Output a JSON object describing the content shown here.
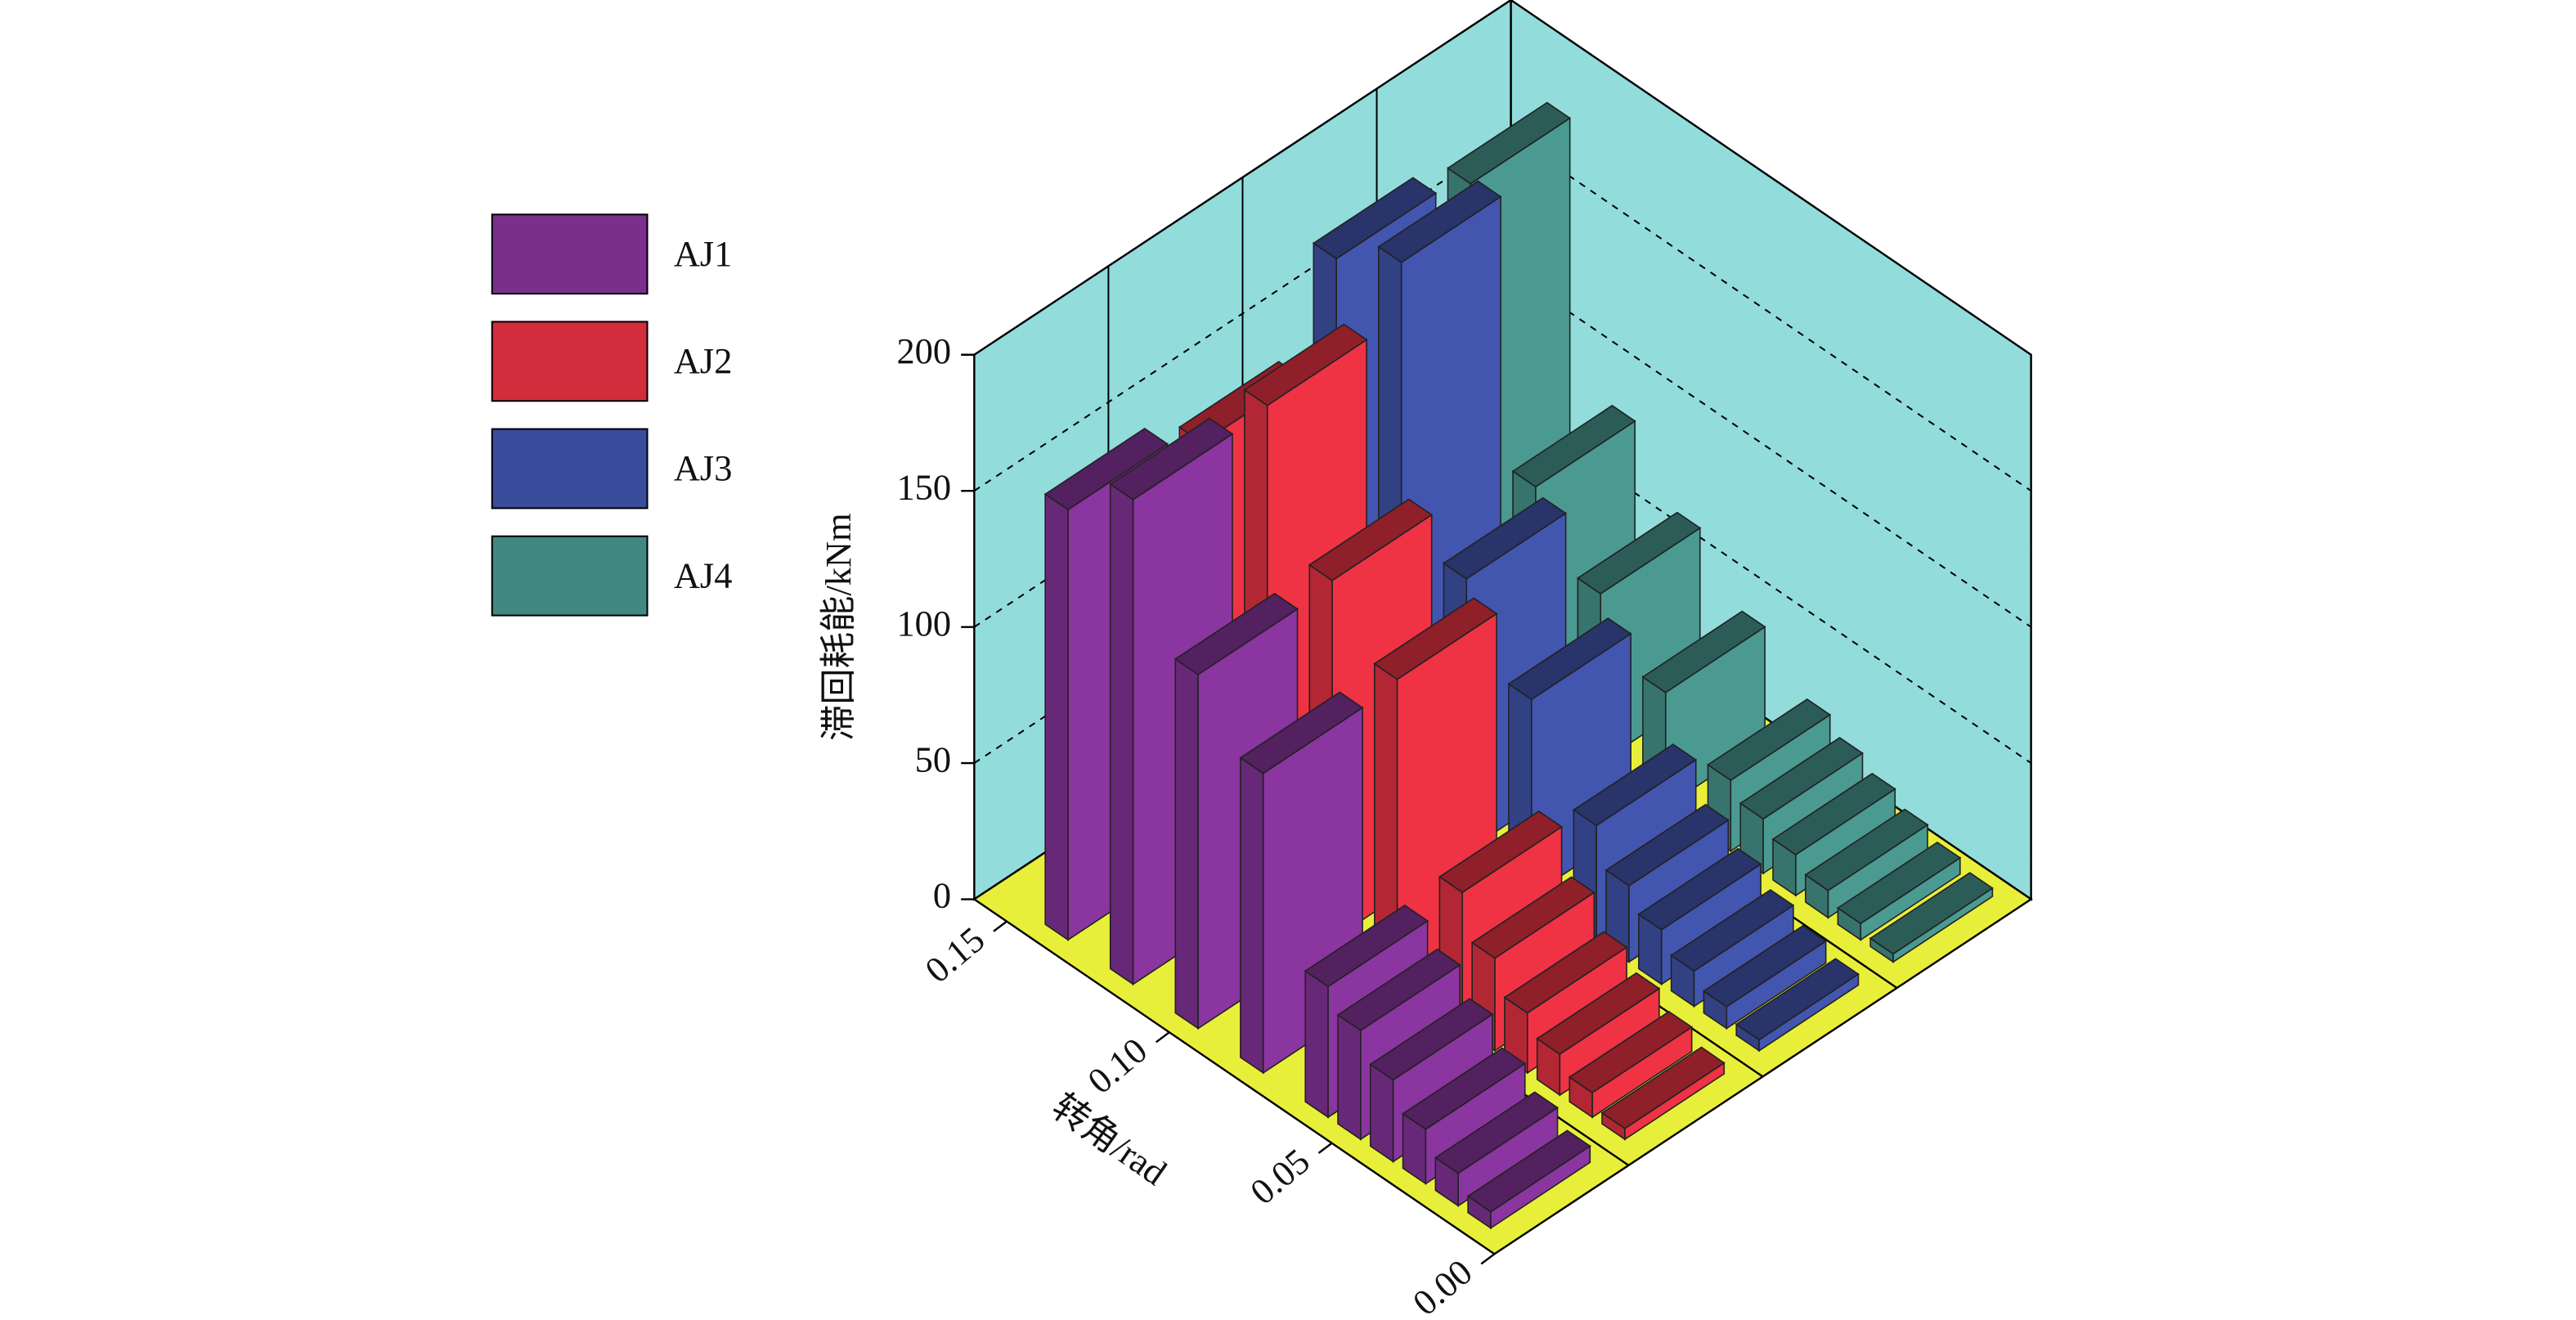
{
  "chart_data": {
    "type": "bar3d",
    "x_label": "转角/rad",
    "y_label": "滞回耗能/kNm",
    "x": [
      0.01,
      0.02,
      0.03,
      0.04,
      0.05,
      0.06,
      0.08,
      0.1,
      0.12,
      0.14
    ],
    "xlim": [
      0,
      0.16
    ],
    "xticks": [
      {
        "value": 0,
        "label": "0.00"
      },
      0.05,
      {
        "value": 0.1,
        "label": "0.10"
      },
      0.15
    ],
    "ylim": [
      0,
      200
    ],
    "yticks": [
      0,
      50,
      100,
      150,
      200
    ],
    "grid": true,
    "legend": "left",
    "series": [
      {
        "name": "AJ1",
        "color": "#8b35a0",
        "values": [
          6,
          12,
          20,
          30,
          40,
          48,
          110,
          130,
          178,
          158
        ]
      },
      {
        "name": "AJ2",
        "color": "#ef3344",
        "values": [
          4,
          9,
          15,
          22,
          34,
          50,
          112,
          132,
          180,
          150
        ]
      },
      {
        "name": "AJ3",
        "color": "#4256b0",
        "values": [
          4,
          8,
          13,
          20,
          28,
          42,
          72,
          100,
          200,
          185
        ]
      },
      {
        "name": "AJ4",
        "color": "#4a9a92",
        "values": [
          3,
          6,
          10,
          15,
          20,
          26,
          42,
          62,
          85,
          180
        ]
      }
    ]
  }
}
